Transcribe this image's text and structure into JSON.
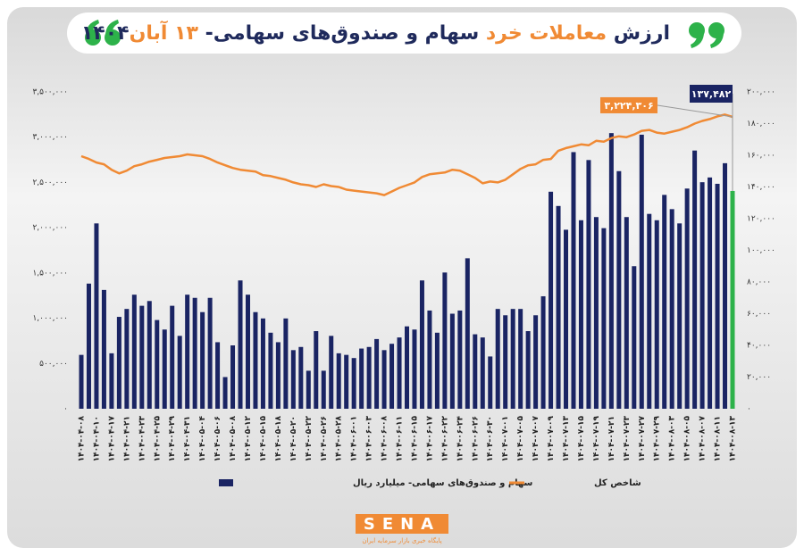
{
  "chart_data": {
    "type": "bar",
    "title_parts": [
      {
        "text": "ارزش ",
        "color": "#1f2a5c"
      },
      {
        "text": "معاملات خرد ",
        "color": "#f08a34"
      },
      {
        "text": "سهام و صندوق‌های سهامی- ",
        "color": "#1f2a5c"
      },
      {
        "text": "۱۳ آبان",
        "color": "#f08a34"
      },
      {
        "text": "۱۴۰۴",
        "color": "#1f2a5c"
      }
    ],
    "categories": [
      "۱۴۰۴-۰۴-۰۸",
      null,
      "۱۴۰۴-۰۴-۱۰",
      null,
      "۱۴۰۴-۰۴-۱۷",
      null,
      "۱۴۰۴-۰۴-۲۱",
      null,
      "۱۴۰۴-۰۴-۲۳",
      null,
      "۱۴۰۴-۰۴-۲۵",
      null,
      "۱۴۰۴-۰۴-۲۹",
      null,
      "۱۴۰۴-۰۴-۳۱",
      null,
      "۱۴۰۴-۰۵-۰۴",
      null,
      "۱۴۰۴-۰۵-۰۶",
      null,
      "۱۴۰۴-۰۵-۰۸",
      null,
      "۱۴۰۴-۰۵-۱۲",
      null,
      "۱۴۰۴-۰۵-۱۵",
      null,
      "۱۴۰۴-۰۵-۱۸",
      null,
      "۱۴۰۴-۰۵-۲۰",
      null,
      "۱۴۰۴-۰۵-۲۲",
      null,
      "۱۴۰۴-۰۵-۲۶",
      null,
      "۱۴۰۴-۰۵-۲۸",
      null,
      "۱۴۰۴-۰۶-۰۱",
      null,
      "۱۴۰۴-۰۶-۰۳",
      null,
      "۱۴۰۴-۰۶-۰۸",
      null,
      "۱۴۰۴-۰۶-۱۱",
      null,
      "۱۴۰۴-۰۶-۱۵",
      null,
      "۱۴۰۴-۰۶-۱۷",
      null,
      "۱۴۰۴-۰۶-۲۲",
      null,
      "۱۴۰۴-۰۶-۲۴",
      null,
      "۱۴۰۴-۰۶-۲۶",
      null,
      "۱۴۰۴-۰۶-۳۰",
      null,
      "۱۴۰۴-۰۷-۰۱",
      null,
      "۱۴۰۴-۰۷-۰۵",
      null,
      "۱۴۰۴-۰۷-۰۷",
      null,
      "۱۴۰۴-۰۷-۰۹",
      null,
      "۱۴۰۴-۰۷-۱۳",
      null,
      "۱۴۰۴-۰۷-۱۵",
      null,
      "۱۴۰۴-۰۷-۱۹",
      null,
      "۱۴۰۴-۰۷-۲۱",
      null,
      "۱۴۰۴-۰۷-۲۳",
      null,
      "۱۴۰۴-۰۷-۲۷",
      null,
      "۱۴۰۴-۰۷-۲۹",
      null,
      "۱۴۰۴-۰۸-۰۳",
      null,
      "۱۴۰۴-۰۸-۰۵",
      null,
      "۱۴۰۴-۰۸-۰۷",
      null,
      "۱۴۰۴-۰۸-۱۱",
      null,
      "۱۴۰۴-۰۸-۱۳"
    ],
    "series": [
      {
        "name": "سهام و صندوق‌های سهامی- میلیارد ریال",
        "type": "bar",
        "axis": "y2",
        "color": "#1a2463",
        "highlight_color": "#2db24a",
        "values": [
          34000,
          79000,
          117000,
          75000,
          35000,
          58000,
          63000,
          72000,
          65000,
          68000,
          56000,
          50000,
          65000,
          46000,
          72000,
          70000,
          61000,
          70000,
          42000,
          20000,
          40000,
          81000,
          72000,
          61000,
          57000,
          48000,
          42000,
          57000,
          37000,
          39000,
          24000,
          49000,
          24000,
          46000,
          35000,
          34000,
          32000,
          38000,
          39000,
          44000,
          37000,
          41000,
          45000,
          52000,
          50000,
          81000,
          62000,
          48000,
          86000,
          60000,
          62000,
          95000,
          47000,
          45000,
          33000,
          63000,
          59000,
          63000,
          63000,
          49000,
          59000,
          71000,
          137000,
          128000,
          113000,
          162000,
          119000,
          157000,
          121000,
          114000,
          174000,
          150000,
          121000,
          90000,
          173000,
          123000,
          119000,
          135000,
          126000,
          117000,
          139000,
          163000,
          143000,
          146000,
          142000,
          155000,
          137482
        ],
        "value_labels": [
          null,
          null,
          null,
          null,
          null,
          null,
          null,
          null,
          null,
          null,
          null,
          null,
          null,
          null,
          null,
          null,
          null,
          null,
          null,
          null,
          null,
          null,
          null,
          null,
          null,
          null,
          null,
          null,
          null,
          null,
          null,
          null,
          null,
          null,
          null,
          null,
          null,
          null,
          null,
          null,
          null,
          null,
          null,
          null,
          null,
          null,
          null,
          null,
          null,
          null,
          null,
          null,
          null,
          null,
          null,
          null,
          null,
          null,
          null,
          null,
          null,
          null,
          null,
          null,
          null,
          null,
          null,
          null,
          null,
          null,
          null,
          null,
          null,
          null,
          null,
          null,
          null,
          null,
          null,
          null,
          null,
          null,
          null,
          null,
          null,
          null,
          "۱۳۷,۴۸۲"
        ]
      },
      {
        "name": "شاخص کل",
        "type": "line",
        "color": "#f08a34",
        "values": [
          2790000,
          2760000,
          2720000,
          2700000,
          2640000,
          2600000,
          2630000,
          2680000,
          2700000,
          2730000,
          2750000,
          2770000,
          2780000,
          2790000,
          2810000,
          2800000,
          2790000,
          2760000,
          2720000,
          2690000,
          2660000,
          2640000,
          2630000,
          2620000,
          2580000,
          2570000,
          2550000,
          2530000,
          2500000,
          2480000,
          2470000,
          2450000,
          2480000,
          2460000,
          2450000,
          2420000,
          2410000,
          2400000,
          2390000,
          2380000,
          2360000,
          2400000,
          2440000,
          2470000,
          2500000,
          2560000,
          2590000,
          2600000,
          2610000,
          2640000,
          2630000,
          2590000,
          2550000,
          2490000,
          2510000,
          2500000,
          2530000,
          2590000,
          2650000,
          2690000,
          2700000,
          2750000,
          2760000,
          2850000,
          2880000,
          2900000,
          2920000,
          2910000,
          2960000,
          2950000,
          2990000,
          3010000,
          3000000,
          3030000,
          3070000,
          3080000,
          3050000,
          3040000,
          3060000,
          3080000,
          3110000,
          3150000,
          3180000,
          3200000,
          3230000,
          3250000,
          3224306
        ],
        "value_labels": [
          null,
          null,
          null,
          null,
          null,
          null,
          null,
          null,
          null,
          null,
          null,
          null,
          null,
          null,
          null,
          null,
          null,
          null,
          null,
          null,
          null,
          null,
          null,
          null,
          null,
          null,
          null,
          null,
          null,
          null,
          null,
          null,
          null,
          null,
          null,
          null,
          null,
          null,
          null,
          null,
          null,
          null,
          null,
          null,
          null,
          null,
          null,
          null,
          null,
          null,
          null,
          null,
          null,
          null,
          null,
          null,
          null,
          null,
          null,
          null,
          null,
          null,
          null,
          null,
          null,
          null,
          null,
          null,
          null,
          null,
          null,
          null,
          null,
          null,
          null,
          null,
          null,
          null,
          null,
          null,
          null,
          null,
          null,
          null,
          null,
          null,
          "۳,۲۲۴,۳۰۶"
        ]
      }
    ],
    "ylim": [
      0,
      3500000
    ],
    "yticks": [
      {
        "value": 0,
        "label": "۰"
      },
      {
        "value": 500000,
        "label": "۵۰۰,۰۰۰"
      },
      {
        "value": 1000000,
        "label": "۱,۰۰۰,۰۰۰"
      },
      {
        "value": 1500000,
        "label": "۱,۵۰۰,۰۰۰"
      },
      {
        "value": 2000000,
        "label": "۲,۰۰۰,۰۰۰"
      },
      {
        "value": 2500000,
        "label": "۲,۵۰۰,۰۰۰"
      },
      {
        "value": 3000000,
        "label": "۳,۰۰۰,۰۰۰"
      },
      {
        "value": 3500000,
        "label": "۳,۵۰۰,۰۰۰"
      }
    ],
    "y2lim": [
      0,
      200000
    ],
    "y2ticks": [
      {
        "value": 0,
        "label": "۰"
      },
      {
        "value": 20000,
        "label": "۲۰,۰۰۰"
      },
      {
        "value": 40000,
        "label": "۴۰,۰۰۰"
      },
      {
        "value": 60000,
        "label": "۶۰,۰۰۰"
      },
      {
        "value": 80000,
        "label": "۸۰,۰۰۰"
      },
      {
        "value": 100000,
        "label": "۱۰۰,۰۰۰"
      },
      {
        "value": 120000,
        "label": "۱۲۰,۰۰۰"
      },
      {
        "value": 140000,
        "label": "۱۴۰,۰۰۰"
      },
      {
        "value": 160000,
        "label": "۱۶۰,۰۰۰"
      },
      {
        "value": 180000,
        "label": "۱۸۰,۰۰۰"
      },
      {
        "value": 200000,
        "label": "۲۰۰,۰۰۰"
      }
    ]
  },
  "logo": {
    "text": "SENA",
    "tagline": "پایگاه خبری بازار سرمایه ایران"
  }
}
